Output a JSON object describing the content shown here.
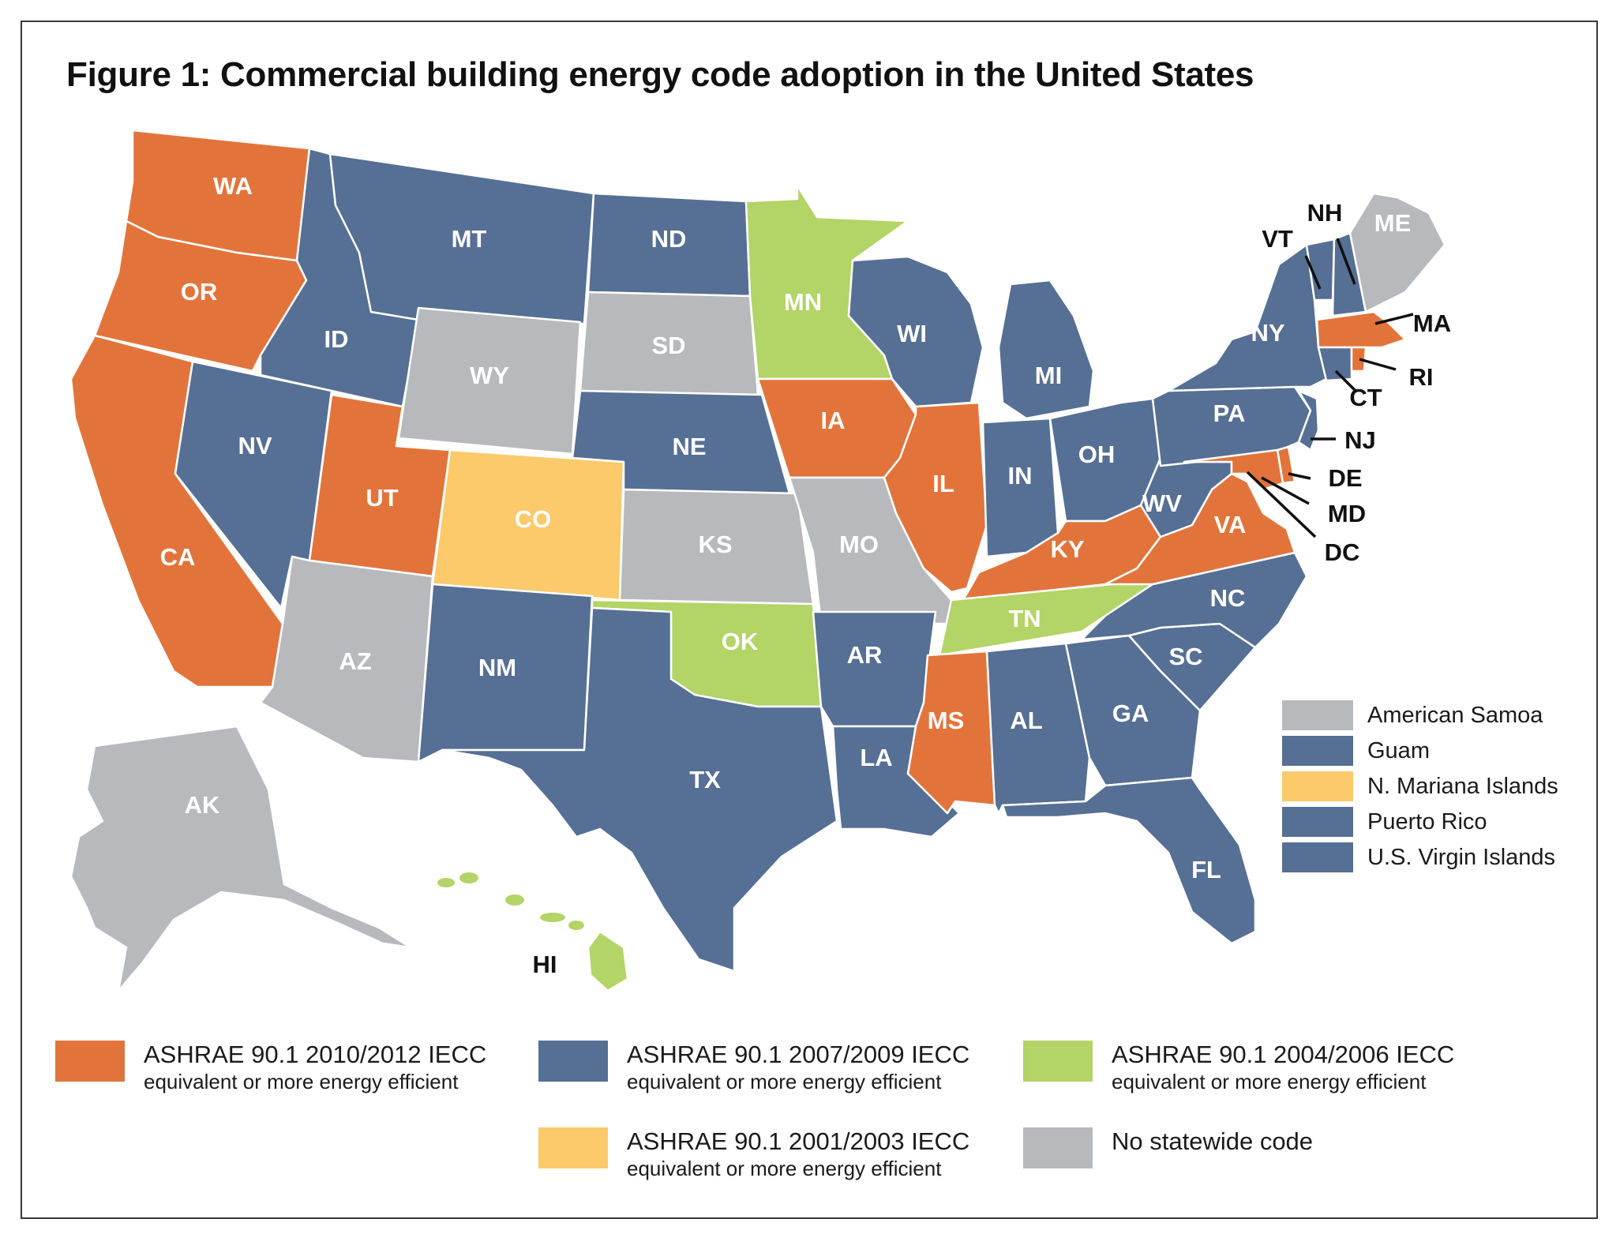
{
  "title": "Figure 1: Commercial building energy code adoption in the United States",
  "colors": {
    "cat_2010": "#e2743b",
    "cat_2007": "#566f94",
    "cat_2004": "#b3d466",
    "cat_2001": "#fcc96b",
    "cat_none": "#b7b9bd"
  },
  "states": {
    "WA": {
      "label": "WA",
      "category": "cat_2010"
    },
    "OR": {
      "label": "OR",
      "category": "cat_2010"
    },
    "CA": {
      "label": "CA",
      "category": "cat_2010"
    },
    "ID": {
      "label": "ID",
      "category": "cat_2007"
    },
    "NV": {
      "label": "NV",
      "category": "cat_2007"
    },
    "UT": {
      "label": "UT",
      "category": "cat_2010"
    },
    "AZ": {
      "label": "AZ",
      "category": "cat_none"
    },
    "MT": {
      "label": "MT",
      "category": "cat_2007"
    },
    "WY": {
      "label": "WY",
      "category": "cat_none"
    },
    "CO": {
      "label": "CO",
      "category": "cat_2001"
    },
    "NM": {
      "label": "NM",
      "category": "cat_2007"
    },
    "ND": {
      "label": "ND",
      "category": "cat_2007"
    },
    "SD": {
      "label": "SD",
      "category": "cat_none"
    },
    "NE": {
      "label": "NE",
      "category": "cat_2007"
    },
    "KS": {
      "label": "KS",
      "category": "cat_none"
    },
    "OK": {
      "label": "OK",
      "category": "cat_2004"
    },
    "TX": {
      "label": "TX",
      "category": "cat_2007"
    },
    "MN": {
      "label": "MN",
      "category": "cat_2004"
    },
    "IA": {
      "label": "IA",
      "category": "cat_2010"
    },
    "MO": {
      "label": "MO",
      "category": "cat_none"
    },
    "AR": {
      "label": "AR",
      "category": "cat_2007"
    },
    "LA": {
      "label": "LA",
      "category": "cat_2007"
    },
    "WI": {
      "label": "WI",
      "category": "cat_2007"
    },
    "IL": {
      "label": "IL",
      "category": "cat_2010"
    },
    "MI": {
      "label": "MI",
      "category": "cat_2007"
    },
    "IN": {
      "label": "IN",
      "category": "cat_2007"
    },
    "OH": {
      "label": "OH",
      "category": "cat_2007"
    },
    "KY": {
      "label": "KY",
      "category": "cat_2010"
    },
    "TN": {
      "label": "TN",
      "category": "cat_2004"
    },
    "MS": {
      "label": "MS",
      "category": "cat_2010"
    },
    "AL": {
      "label": "AL",
      "category": "cat_2007"
    },
    "GA": {
      "label": "GA",
      "category": "cat_2007"
    },
    "FL": {
      "label": "FL",
      "category": "cat_2007"
    },
    "SC": {
      "label": "SC",
      "category": "cat_2007"
    },
    "NC": {
      "label": "NC",
      "category": "cat_2007"
    },
    "VA": {
      "label": "VA",
      "category": "cat_2010"
    },
    "WV": {
      "label": "WV",
      "category": "cat_2007"
    },
    "PA": {
      "label": "PA",
      "category": "cat_2007"
    },
    "NY": {
      "label": "NY",
      "category": "cat_2007"
    },
    "VT": {
      "label": "VT",
      "category": "cat_2007"
    },
    "NH": {
      "label": "NH",
      "category": "cat_2007"
    },
    "ME": {
      "label": "ME",
      "category": "cat_none"
    },
    "MA": {
      "label": "MA",
      "category": "cat_2010"
    },
    "RI": {
      "label": "RI",
      "category": "cat_2010"
    },
    "CT": {
      "label": "CT",
      "category": "cat_2007"
    },
    "NJ": {
      "label": "NJ",
      "category": "cat_2007"
    },
    "DE": {
      "label": "DE",
      "category": "cat_2010"
    },
    "MD": {
      "label": "MD",
      "category": "cat_2010"
    },
    "DC": {
      "label": "DC",
      "category": "cat_2010"
    },
    "AK": {
      "label": "AK",
      "category": "cat_none"
    },
    "HI": {
      "label": "HI",
      "category": "cat_2004"
    }
  },
  "territories": [
    {
      "label": "American Samoa",
      "category": "cat_none"
    },
    {
      "label": "Guam",
      "category": "cat_2007"
    },
    {
      "label": "N. Mariana Islands",
      "category": "cat_2001"
    },
    {
      "label": "Puerto Rico",
      "category": "cat_2007"
    },
    {
      "label": "U.S. Virgin Islands",
      "category": "cat_2007"
    }
  ],
  "legend": [
    {
      "category": "cat_2010",
      "line1": "ASHRAE 90.1 2010/2012 IECC",
      "line2": "equivalent or more energy efficient"
    },
    {
      "category": "cat_2007",
      "line1": "ASHRAE 90.1 2007/2009 IECC",
      "line2": "equivalent or more energy efficient"
    },
    {
      "category": "cat_2004",
      "line1": "ASHRAE 90.1 2004/2006 IECC",
      "line2": "equivalent or more energy efficient"
    },
    {
      "category": "cat_2001",
      "line1": "ASHRAE 90.1 2001/2003 IECC",
      "line2": "equivalent or more energy efficient"
    },
    {
      "category": "cat_none",
      "line1": "No statewide code",
      "line2": ""
    }
  ]
}
